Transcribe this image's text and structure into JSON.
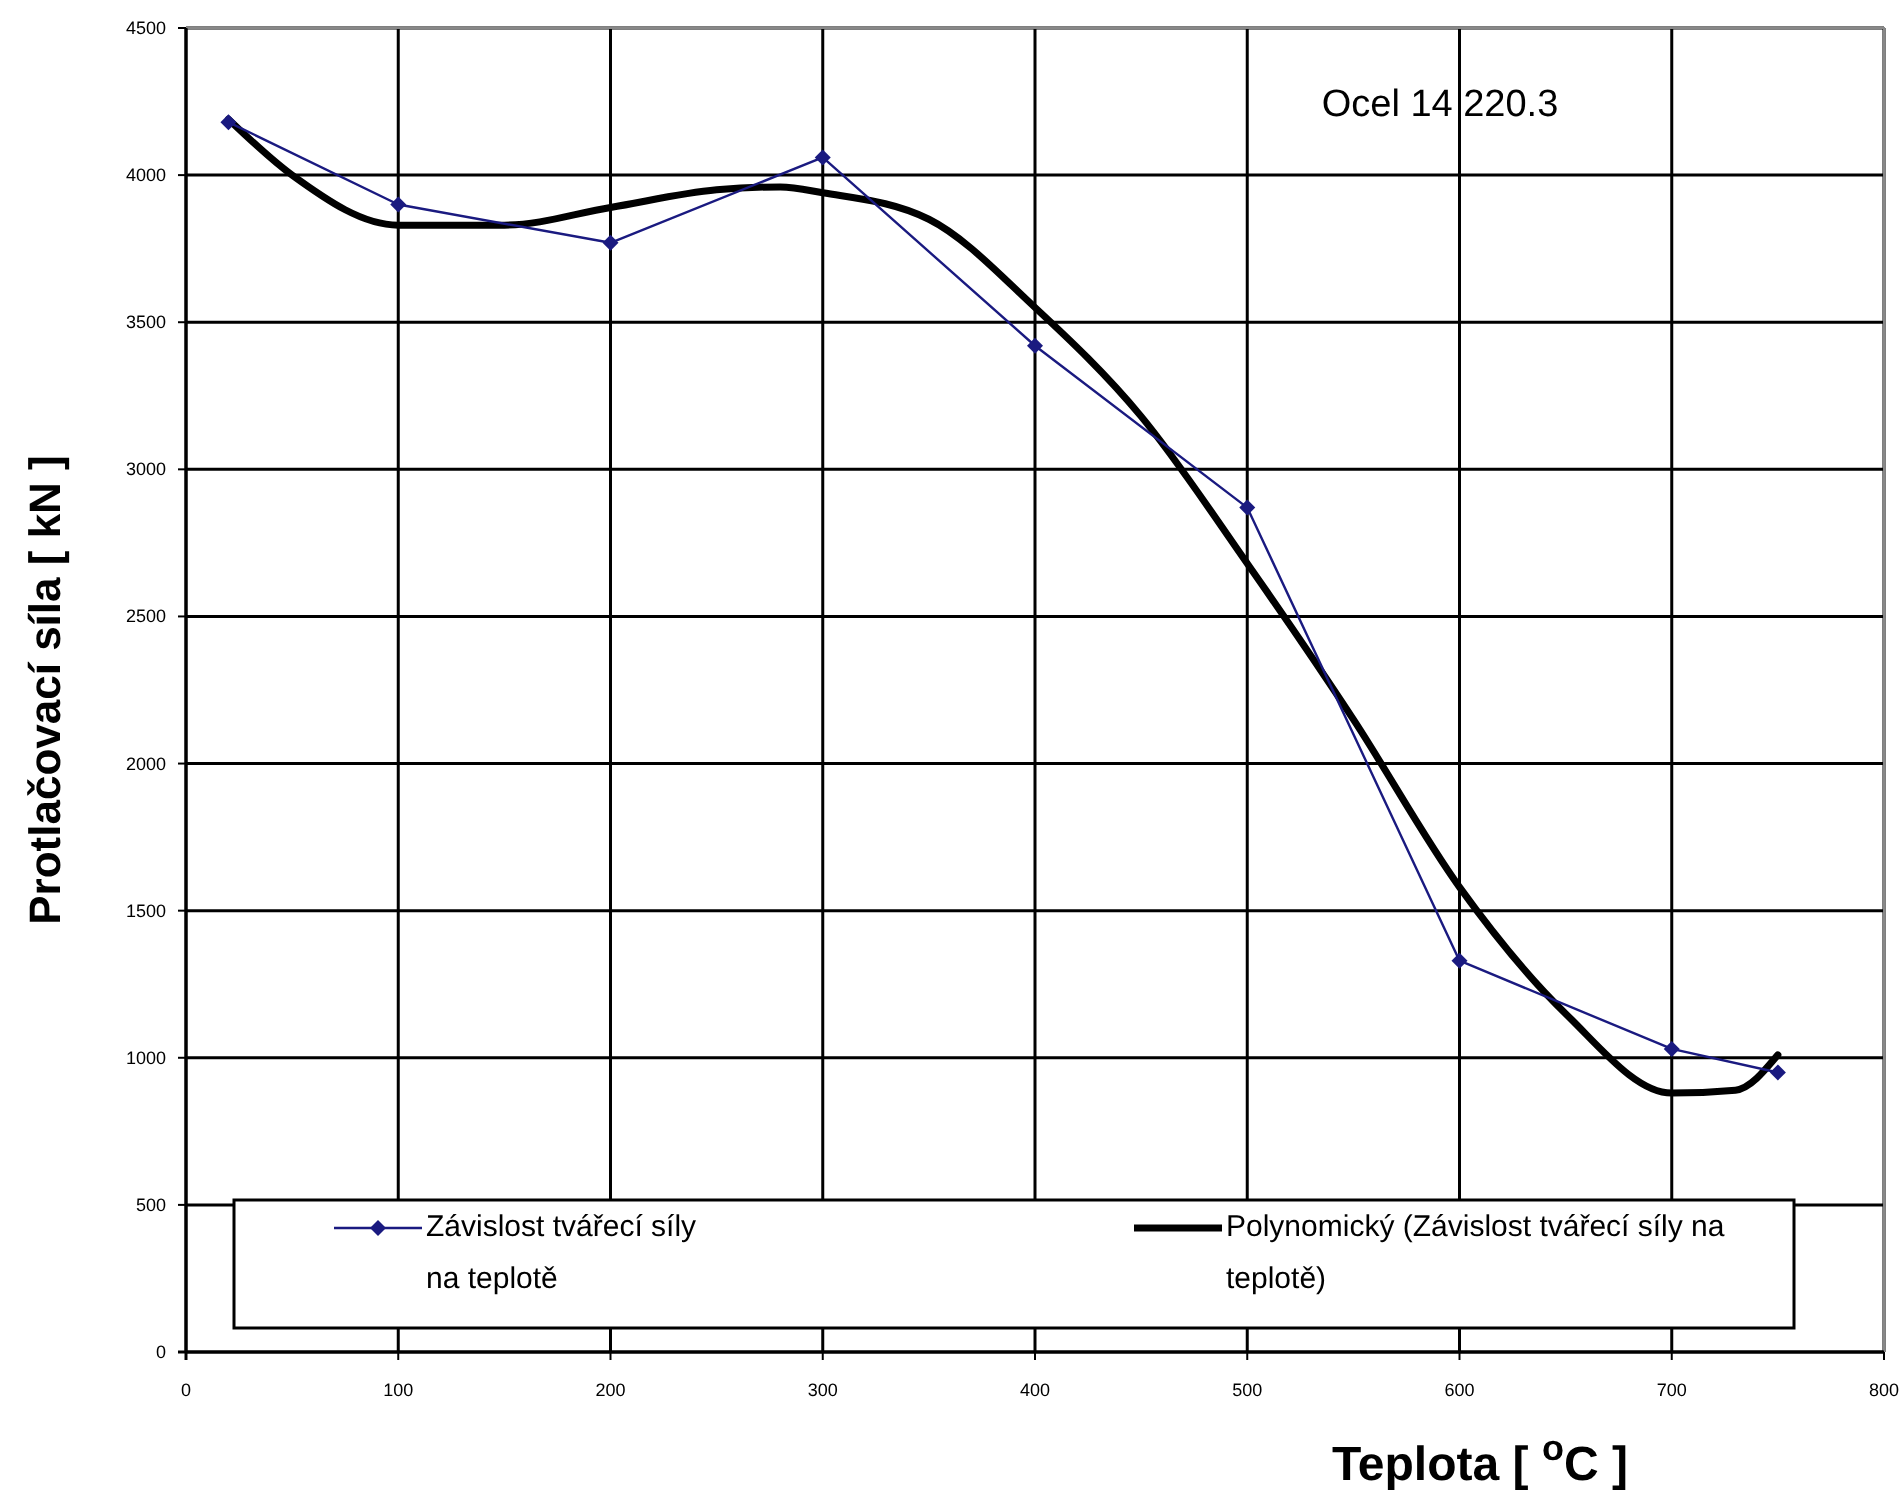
{
  "chart_data": {
    "type": "line",
    "xlabel": "Teplota  [ $^{o}$C ]",
    "ylabel": "Protlačovací síla  [ kN ]",
    "annotations": [
      "Ocel  14 220.3"
    ],
    "xlim": [
      0,
      800
    ],
    "xticks": [
      0,
      100,
      200,
      300,
      400,
      500,
      600,
      700,
      800
    ],
    "ylim": [
      0,
      4500
    ],
    "yticks": [
      0,
      500,
      1000,
      1500,
      2000,
      2500,
      3000,
      3500,
      4000,
      4500
    ],
    "grid": true,
    "legend": "bottom",
    "series": [
      {
        "name": "Závislost tvářecí síly na teplotě",
        "color": "#1a1a80",
        "marker": "diamond",
        "x": [
          20,
          100,
          200,
          300,
          400,
          500,
          600,
          700,
          750
        ],
        "values": [
          4180,
          3900,
          3770,
          4060,
          3420,
          2870,
          1330,
          1030,
          950
        ]
      },
      {
        "name": "Polynomický (Závislost tvářecí síly na teplotě)",
        "color": "#000000",
        "marker": "none",
        "x": [
          20,
          50,
          100,
          150,
          200,
          250,
          280,
          300,
          350,
          400,
          450,
          500,
          550,
          600,
          650,
          700,
          730,
          750
        ],
        "values": [
          4190,
          4000,
          3830,
          3830,
          3890,
          3950,
          3960,
          3940,
          3850,
          3550,
          3180,
          2680,
          2150,
          1580,
          1150,
          880,
          890,
          1010
        ]
      }
    ]
  }
}
